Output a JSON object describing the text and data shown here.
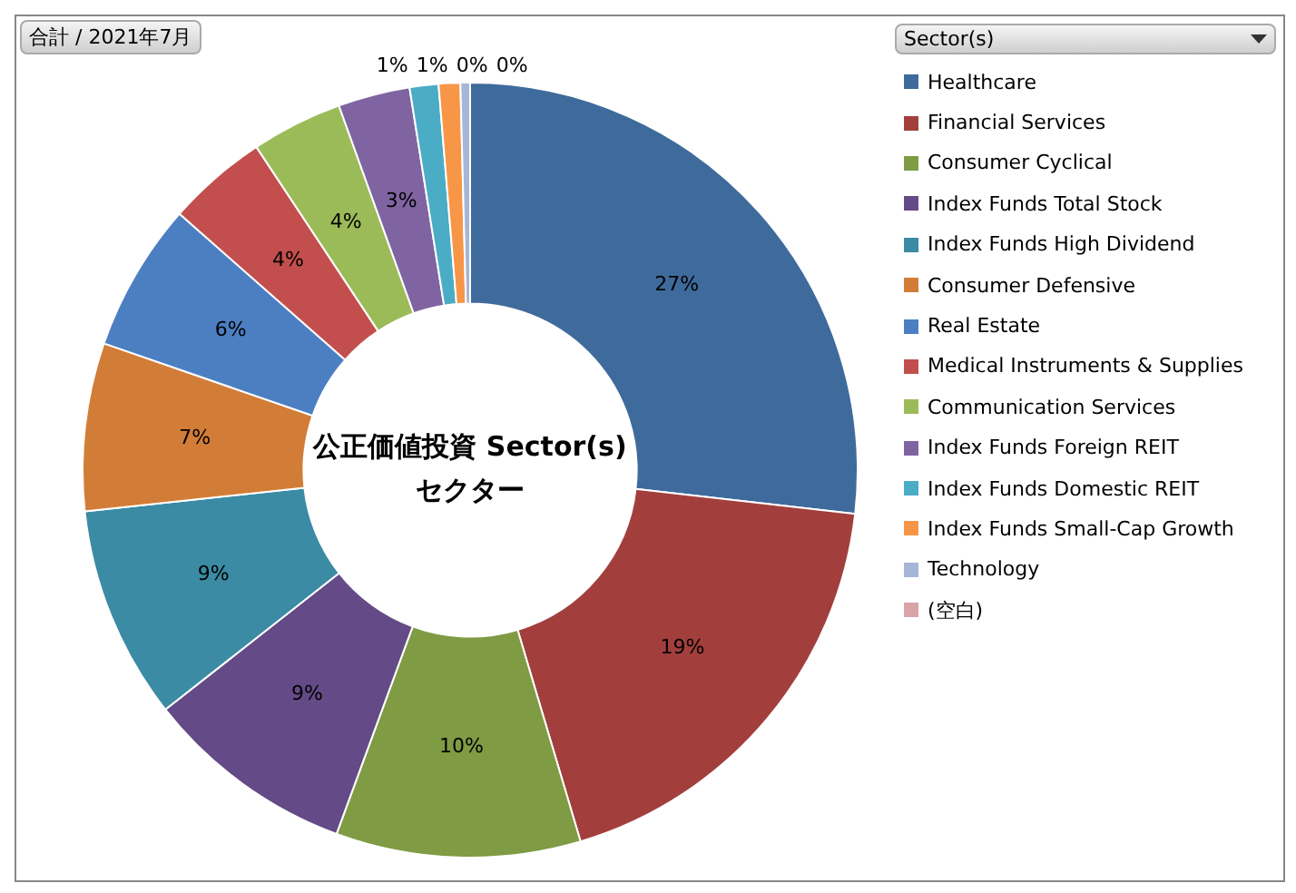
{
  "chart_data": {
    "type": "donut",
    "title": "公正価値投資 Sector(s) セクター",
    "legend_title": "Sector(s)",
    "legend": "right",
    "annotations": [
      "合計 / 2021年7月"
    ],
    "categories": [
      "Healthcare",
      "Financial Services",
      "Consumer Cyclical",
      "Index Funds Total Stock",
      "Index Funds High Dividend",
      "Consumer Defensive",
      "Real Estate",
      "Medical Instruments & Supplies",
      "Communication Services",
      "Index Funds Foreign REIT",
      "Index Funds Domestic REIT",
      "Index Funds Small-Cap Growth",
      "Technology",
      "(空白)"
    ],
    "values": [
      26.8,
      18.6,
      10.2,
      8.8,
      8.9,
      7.0,
      6.2,
      4.2,
      3.8,
      3.0,
      1.2,
      0.9,
      0.4,
      0.0
    ],
    "value_labels": [
      "27%",
      "19%",
      "10%",
      "9%",
      "9%",
      "7%",
      "6%",
      "4%",
      "4%",
      "3%",
      "1%",
      "1%",
      "0%",
      "0%"
    ],
    "colors": [
      "#3f6a9c",
      "#a23f3d",
      "#7f9b43",
      "#644a87",
      "#3a8ba3",
      "#d27d37",
      "#4c7fc2",
      "#c24f4d",
      "#9bbb59",
      "#8064a2",
      "#4bacc6",
      "#f79646",
      "#a5b6d8",
      "#d9a4a6"
    ]
  }
}
